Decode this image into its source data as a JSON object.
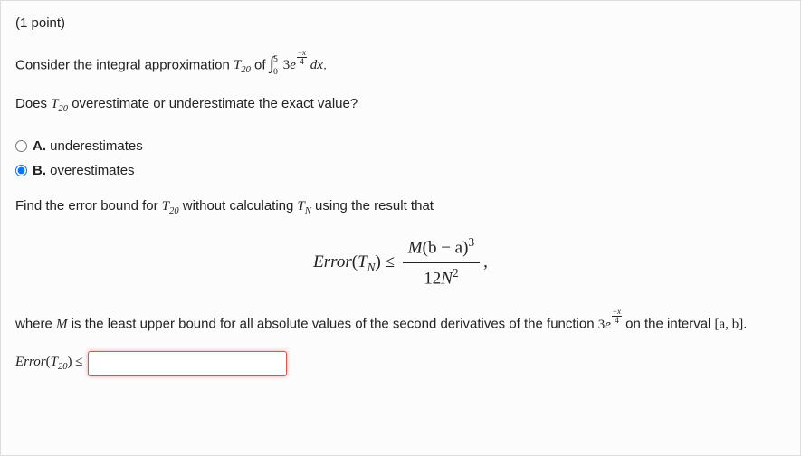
{
  "points": "(1 point)",
  "prompt_prefix": "Consider the integral approximation ",
  "T20": "T",
  "T20_sub": "20",
  "of_text": " of ",
  "integral_coeff": "3",
  "integral_e": "e",
  "exp_top": "x",
  "exp_bot": "4",
  "dx": " dx",
  "period": ".",
  "question1_prefix": "Does ",
  "question1_suffix": " overestimate or underestimate the exact value?",
  "choices": {
    "A": {
      "letter": "A.",
      "text": " underestimates",
      "selected": false
    },
    "B": {
      "letter": "B.",
      "text": " overestimates",
      "selected": true
    }
  },
  "find_prefix": "Find the error bound for ",
  "find_mid": " without calculating ",
  "TN": "T",
  "TN_sub": "N",
  "find_suffix": " using the result that",
  "formula": {
    "lhs": "Error",
    "lhs_arg_T": "T",
    "lhs_arg_sub": "N",
    "leq": " ≤ ",
    "num_M": "M",
    "num_paren": "(b − a)",
    "num_exp": "3",
    "den_12": "12",
    "den_N": "N",
    "den_exp": "2",
    "comma": ","
  },
  "where_prefix": "where ",
  "M": "M",
  "where_mid": " is the least upper bound for all absolute values of the second derivatives of the function ",
  "on_text": " on the interval ",
  "interval": "[a, b]",
  "answer_label_lhs": "Error",
  "answer_label_T": "T",
  "answer_label_sub": "20",
  "answer_leq": " ≤ ",
  "answer_value": "",
  "int_lower": "0",
  "int_upper": "5",
  "neg": "−"
}
